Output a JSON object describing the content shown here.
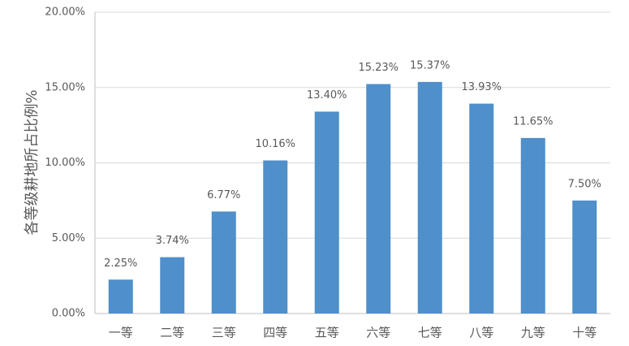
{
  "chart_data": {
    "type": "bar",
    "y_label": "各等级耕地所占比例%",
    "categories": [
      "一等",
      "二等",
      "三等",
      "四等",
      "五等",
      "六等",
      "七等",
      "八等",
      "九等",
      "十等"
    ],
    "values": [
      2.25,
      3.74,
      6.77,
      10.16,
      13.4,
      15.23,
      15.37,
      13.93,
      11.65,
      7.5
    ],
    "value_labels": [
      "2.25%",
      "3.74%",
      "6.77%",
      "10.16%",
      "13.40%",
      "15.23%",
      "15.37%",
      "13.93%",
      "11.65%",
      "7.50%"
    ],
    "color": "#4f8fca",
    "ylim": [
      0,
      20
    ],
    "yticks": [
      {
        "value": 0,
        "label": "0.00%"
      },
      {
        "value": 5,
        "label": "5.00%"
      },
      {
        "value": 10,
        "label": "10.00%"
      },
      {
        "value": 15,
        "label": "15.00%"
      },
      {
        "value": 20,
        "label": "20.00%"
      }
    ],
    "grid": true
  }
}
